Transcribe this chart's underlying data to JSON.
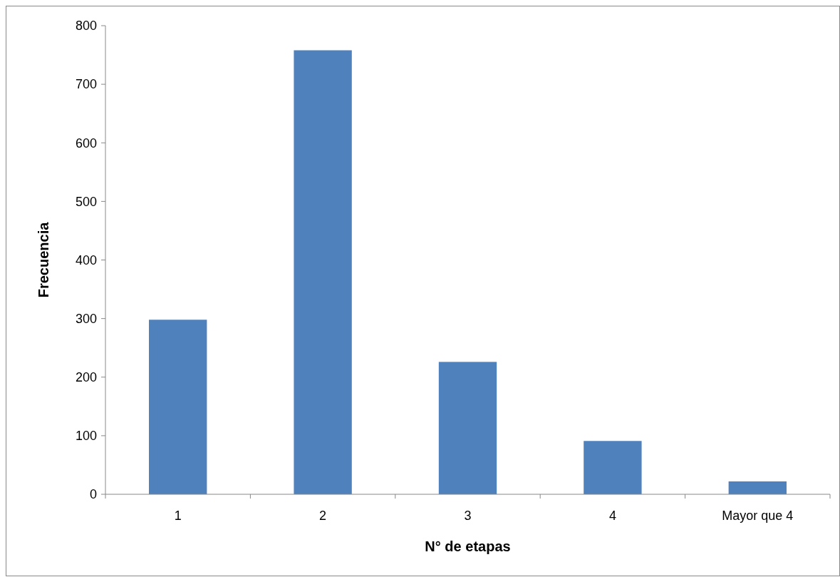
{
  "chart_data": {
    "type": "bar",
    "xlabel": "N° de etapas",
    "ylabel": "Frecuencia",
    "categories": [
      "1",
      "2",
      "3",
      "4",
      "Mayor que 4"
    ],
    "values": [
      298,
      758,
      226,
      91,
      22
    ],
    "color": "#4f81bd",
    "ylim": [
      0,
      800
    ],
    "yticks": [
      0,
      100,
      200,
      300,
      400,
      500,
      600,
      700,
      800
    ],
    "grid": false
  }
}
